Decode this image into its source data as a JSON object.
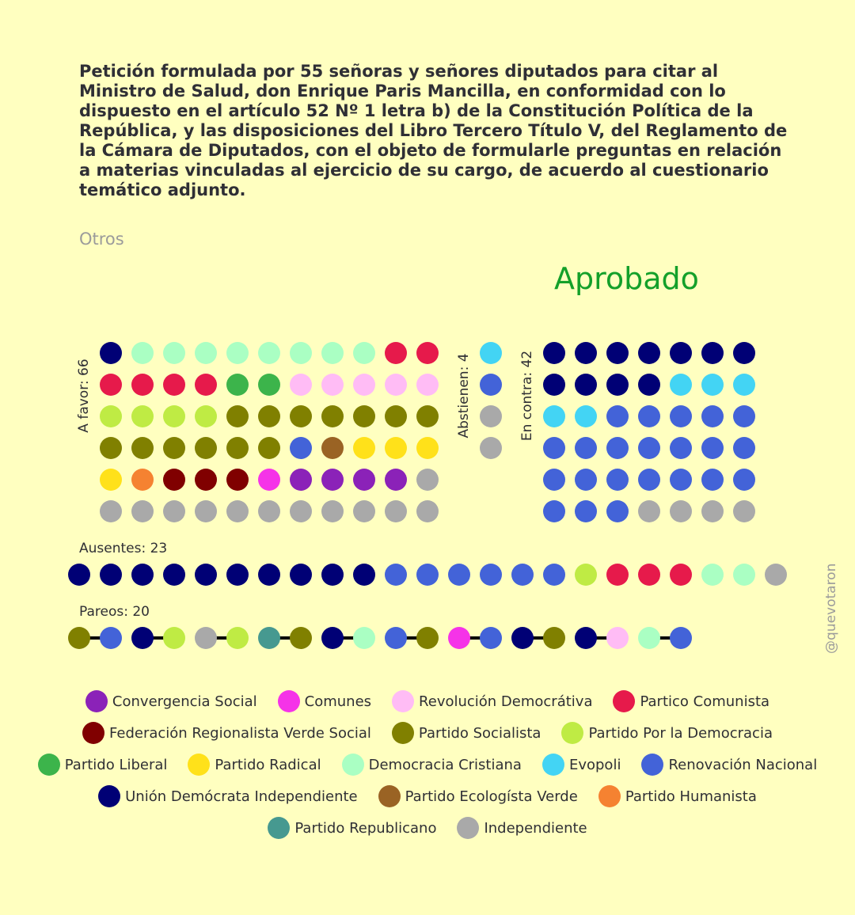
{
  "title": "Petición formulada por 55 señoras y señores diputados para citar al Ministro de Salud, don Enrique Paris Mancilla, en conformidad con lo dispuesto en el artículo 52 Nº 1 letra b) de la Constitución Política de la República, y las disposiciones del Libro Tercero Título V, del Reglamento de la Cámara de Diputados, con el objeto de formularle preguntas en relación a materias vinculadas al ejercicio de su cargo, de acuerdo al cuestionario temático adjunto.",
  "category": "Otros",
  "result": "Aprobado",
  "watermark": "@quevotaron",
  "parties": [
    {
      "name": "Convergencia Social",
      "color": "#8b22b8"
    },
    {
      "name": "Comunes",
      "color": "#f533e8"
    },
    {
      "name": "Revolución Democrátiva",
      "color": "#ffbcf5"
    },
    {
      "name": "Partico Comunista",
      "color": "#e61a4b"
    },
    {
      "name": "Federación Regionalista Verde Social",
      "color": "#800000"
    },
    {
      "name": "Partido Socialista",
      "color": "#808000"
    },
    {
      "name": "Partido Por la Democracia",
      "color": "#bfeb44"
    },
    {
      "name": "Partido Liberal",
      "color": "#3cb44b"
    },
    {
      "name": "Partido Radical",
      "color": "#ffe11a"
    },
    {
      "name": "Democracia Cristiana",
      "color": "#aaffc3"
    },
    {
      "name": "Evopoli",
      "color": "#43d4f4"
    },
    {
      "name": "Renovación Nacional",
      "color": "#4363d8"
    },
    {
      "name": "Unión Demócrata Independiente",
      "color": "#000075"
    },
    {
      "name": "Partido Ecologísta Verde",
      "color": "#9a6324"
    },
    {
      "name": "Partido Humanista",
      "color": "#f58231"
    },
    {
      "name": "Partido Republicano",
      "color": "#469990"
    },
    {
      "name": "Independiente",
      "color": "#a9a9a9"
    }
  ],
  "legend_rows": [
    [
      0,
      1,
      2,
      3
    ],
    [
      4,
      5,
      6
    ],
    [
      7,
      8,
      9,
      10,
      11
    ],
    [
      12,
      13,
      14
    ],
    [
      15,
      16
    ]
  ],
  "chart_data": {
    "type": "dot-grid",
    "groups": [
      {
        "key": "favor",
        "label": "A favor: 66",
        "count": 66,
        "parties": [
          12,
          9,
          9,
          9,
          9,
          9,
          9,
          9,
          9,
          3,
          3,
          3,
          3,
          3,
          3,
          7,
          7,
          2,
          2,
          2,
          2,
          2,
          6,
          6,
          6,
          6,
          5,
          5,
          5,
          5,
          5,
          5,
          5,
          5,
          5,
          5,
          5,
          5,
          5,
          11,
          13,
          8,
          8,
          8,
          8,
          14,
          4,
          4,
          4,
          1,
          0,
          0,
          0,
          0,
          16,
          16,
          16,
          16,
          16,
          16,
          16,
          16,
          16,
          16,
          16,
          16
        ]
      },
      {
        "key": "abstienen",
        "label": "Abstienen: 4",
        "count": 4,
        "parties": [
          10,
          11,
          16,
          16
        ]
      },
      {
        "key": "contra",
        "label": "En contra: 42",
        "count": 42,
        "parties": [
          12,
          12,
          12,
          12,
          12,
          12,
          12,
          12,
          12,
          12,
          12,
          10,
          10,
          10,
          10,
          10,
          11,
          11,
          11,
          11,
          11,
          11,
          11,
          11,
          11,
          11,
          11,
          11,
          11,
          11,
          11,
          11,
          11,
          11,
          11,
          11,
          11,
          11,
          16,
          16,
          16,
          16
        ]
      },
      {
        "key": "ausentes",
        "label": "Ausentes: 23",
        "count": 23,
        "parties": [
          12,
          12,
          12,
          12,
          12,
          12,
          12,
          12,
          12,
          12,
          11,
          11,
          11,
          11,
          11,
          11,
          6,
          3,
          3,
          3,
          9,
          9,
          16
        ]
      },
      {
        "key": "pareos",
        "label": "Pareos: 20",
        "count": 20,
        "pairs": [
          [
            5,
            11
          ],
          [
            12,
            6
          ],
          [
            16,
            6
          ],
          [
            15,
            5
          ],
          [
            12,
            9
          ],
          [
            11,
            5
          ],
          [
            1,
            11
          ],
          [
            12,
            5
          ],
          [
            12,
            2
          ],
          [
            9,
            11
          ]
        ]
      }
    ]
  }
}
